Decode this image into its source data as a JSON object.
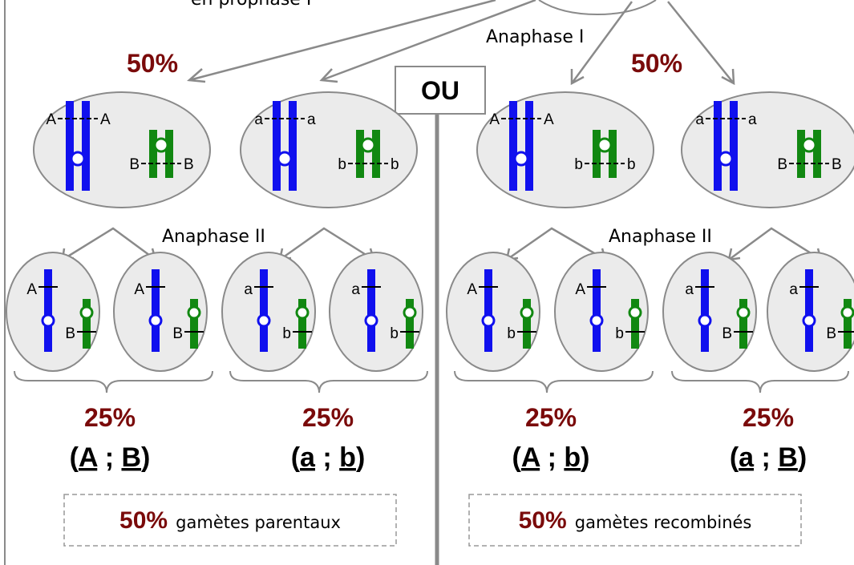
{
  "header": {
    "prophase_label": "en prophase I"
  },
  "stage_labels": {
    "anaphase1": "Anaphase I",
    "anaphase2_left": "Anaphase II",
    "anaphase2_right": "Anaphase II"
  },
  "ou_label": "OU",
  "colors": {
    "blue_chromosome": "#1010ee",
    "green_chromosome": "#118811",
    "percent_text": "#7a0a0a",
    "line_gray": "#8a8a8a"
  },
  "left": {
    "top_percent": "50%",
    "cells": [
      {
        "blue_allele": "A",
        "green_allele": "B"
      },
      {
        "blue_allele": "a",
        "green_allele": "b"
      }
    ],
    "gametes": [
      {
        "blue_allele": "A",
        "green_allele": "B"
      },
      {
        "blue_allele": "A",
        "green_allele": "B"
      },
      {
        "blue_allele": "a",
        "green_allele": "b"
      },
      {
        "blue_allele": "a",
        "green_allele": "b"
      }
    ],
    "groups": [
      {
        "percent": "25%",
        "g1": "A",
        "g2": "B"
      },
      {
        "percent": "25%",
        "g1": "a",
        "g2": "b"
      }
    ],
    "summary": {
      "percent": "50%",
      "text": "gamètes parentaux"
    }
  },
  "right": {
    "top_percent": "50%",
    "cells": [
      {
        "blue_allele": "A",
        "green_allele": "b"
      },
      {
        "blue_allele": "a",
        "green_allele": "B"
      }
    ],
    "gametes": [
      {
        "blue_allele": "A",
        "green_allele": "b"
      },
      {
        "blue_allele": "A",
        "green_allele": "b"
      },
      {
        "blue_allele": "a",
        "green_allele": "B"
      },
      {
        "blue_allele": "a",
        "green_allele": "B"
      }
    ],
    "groups": [
      {
        "percent": "25%",
        "g1": "A",
        "g2": "b"
      },
      {
        "percent": "25%",
        "g1": "a",
        "g2": "B"
      }
    ],
    "summary": {
      "percent": "50%",
      "text": "gamètes recombinés"
    }
  },
  "genotype_punct": {
    "open": "(",
    "sep": " ; ",
    "close": ")"
  }
}
